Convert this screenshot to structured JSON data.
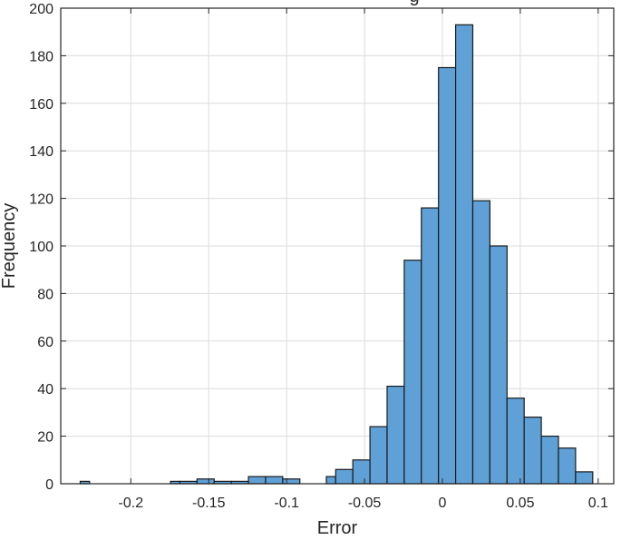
{
  "chart_data": {
    "type": "bar",
    "title_fragment": "g",
    "xlabel": "Error",
    "ylabel": "Frequency",
    "xlim": [
      -0.245,
      0.11
    ],
    "ylim": [
      0,
      200
    ],
    "x_ticks": [
      -0.2,
      -0.15,
      -0.1,
      -0.05,
      0,
      0.05,
      0.1
    ],
    "x_tick_labels": [
      "-0.2",
      "-0.15",
      "-0.1",
      "-0.05",
      "0",
      "0.05",
      "0.1"
    ],
    "y_ticks": [
      0,
      20,
      40,
      60,
      80,
      100,
      120,
      140,
      160,
      180,
      200
    ],
    "y_tick_labels": [
      "0",
      "20",
      "40",
      "60",
      "80",
      "100",
      "120",
      "140",
      "160",
      "180",
      "200"
    ],
    "grid": true,
    "bins": [
      {
        "x0": -0.2325,
        "x1": -0.2265,
        "count": 1
      },
      {
        "x0": -0.1745,
        "x1": -0.1685,
        "count": 1
      },
      {
        "x0": -0.1685,
        "x1": -0.1575,
        "count": 1
      },
      {
        "x0": -0.1575,
        "x1": -0.1465,
        "count": 2
      },
      {
        "x0": -0.1465,
        "x1": -0.1355,
        "count": 1
      },
      {
        "x0": -0.1355,
        "x1": -0.1245,
        "count": 1
      },
      {
        "x0": -0.1245,
        "x1": -0.1135,
        "count": 3
      },
      {
        "x0": -0.1135,
        "x1": -0.1025,
        "count": 3
      },
      {
        "x0": -0.1025,
        "x1": -0.0915,
        "count": 2
      },
      {
        "x0": -0.0745,
        "x1": -0.0685,
        "count": 3
      },
      {
        "x0": -0.0685,
        "x1": -0.0575,
        "count": 6
      },
      {
        "x0": -0.0575,
        "x1": -0.0465,
        "count": 10
      },
      {
        "x0": -0.0465,
        "x1": -0.0355,
        "count": 24
      },
      {
        "x0": -0.0355,
        "x1": -0.0245,
        "count": 41
      },
      {
        "x0": -0.0245,
        "x1": -0.0135,
        "count": 94
      },
      {
        "x0": -0.0135,
        "x1": -0.0025,
        "count": 116
      },
      {
        "x0": -0.0025,
        "x1": 0.0085,
        "count": 175
      },
      {
        "x0": 0.0085,
        "x1": 0.0195,
        "count": 193
      },
      {
        "x0": 0.0195,
        "x1": 0.0305,
        "count": 119
      },
      {
        "x0": 0.0305,
        "x1": 0.0415,
        "count": 100
      },
      {
        "x0": 0.0415,
        "x1": 0.0525,
        "count": 36
      },
      {
        "x0": 0.0525,
        "x1": 0.0635,
        "count": 28
      },
      {
        "x0": 0.0635,
        "x1": 0.0745,
        "count": 20
      },
      {
        "x0": 0.0745,
        "x1": 0.0855,
        "count": 15
      },
      {
        "x0": 0.0855,
        "x1": 0.0965,
        "count": 5
      }
    ],
    "colors": {
      "bar_fill": "#5fa1d6",
      "bar_edge": "#1a1a1a",
      "grid": "#dcdcdc",
      "axis": "#262626"
    }
  }
}
